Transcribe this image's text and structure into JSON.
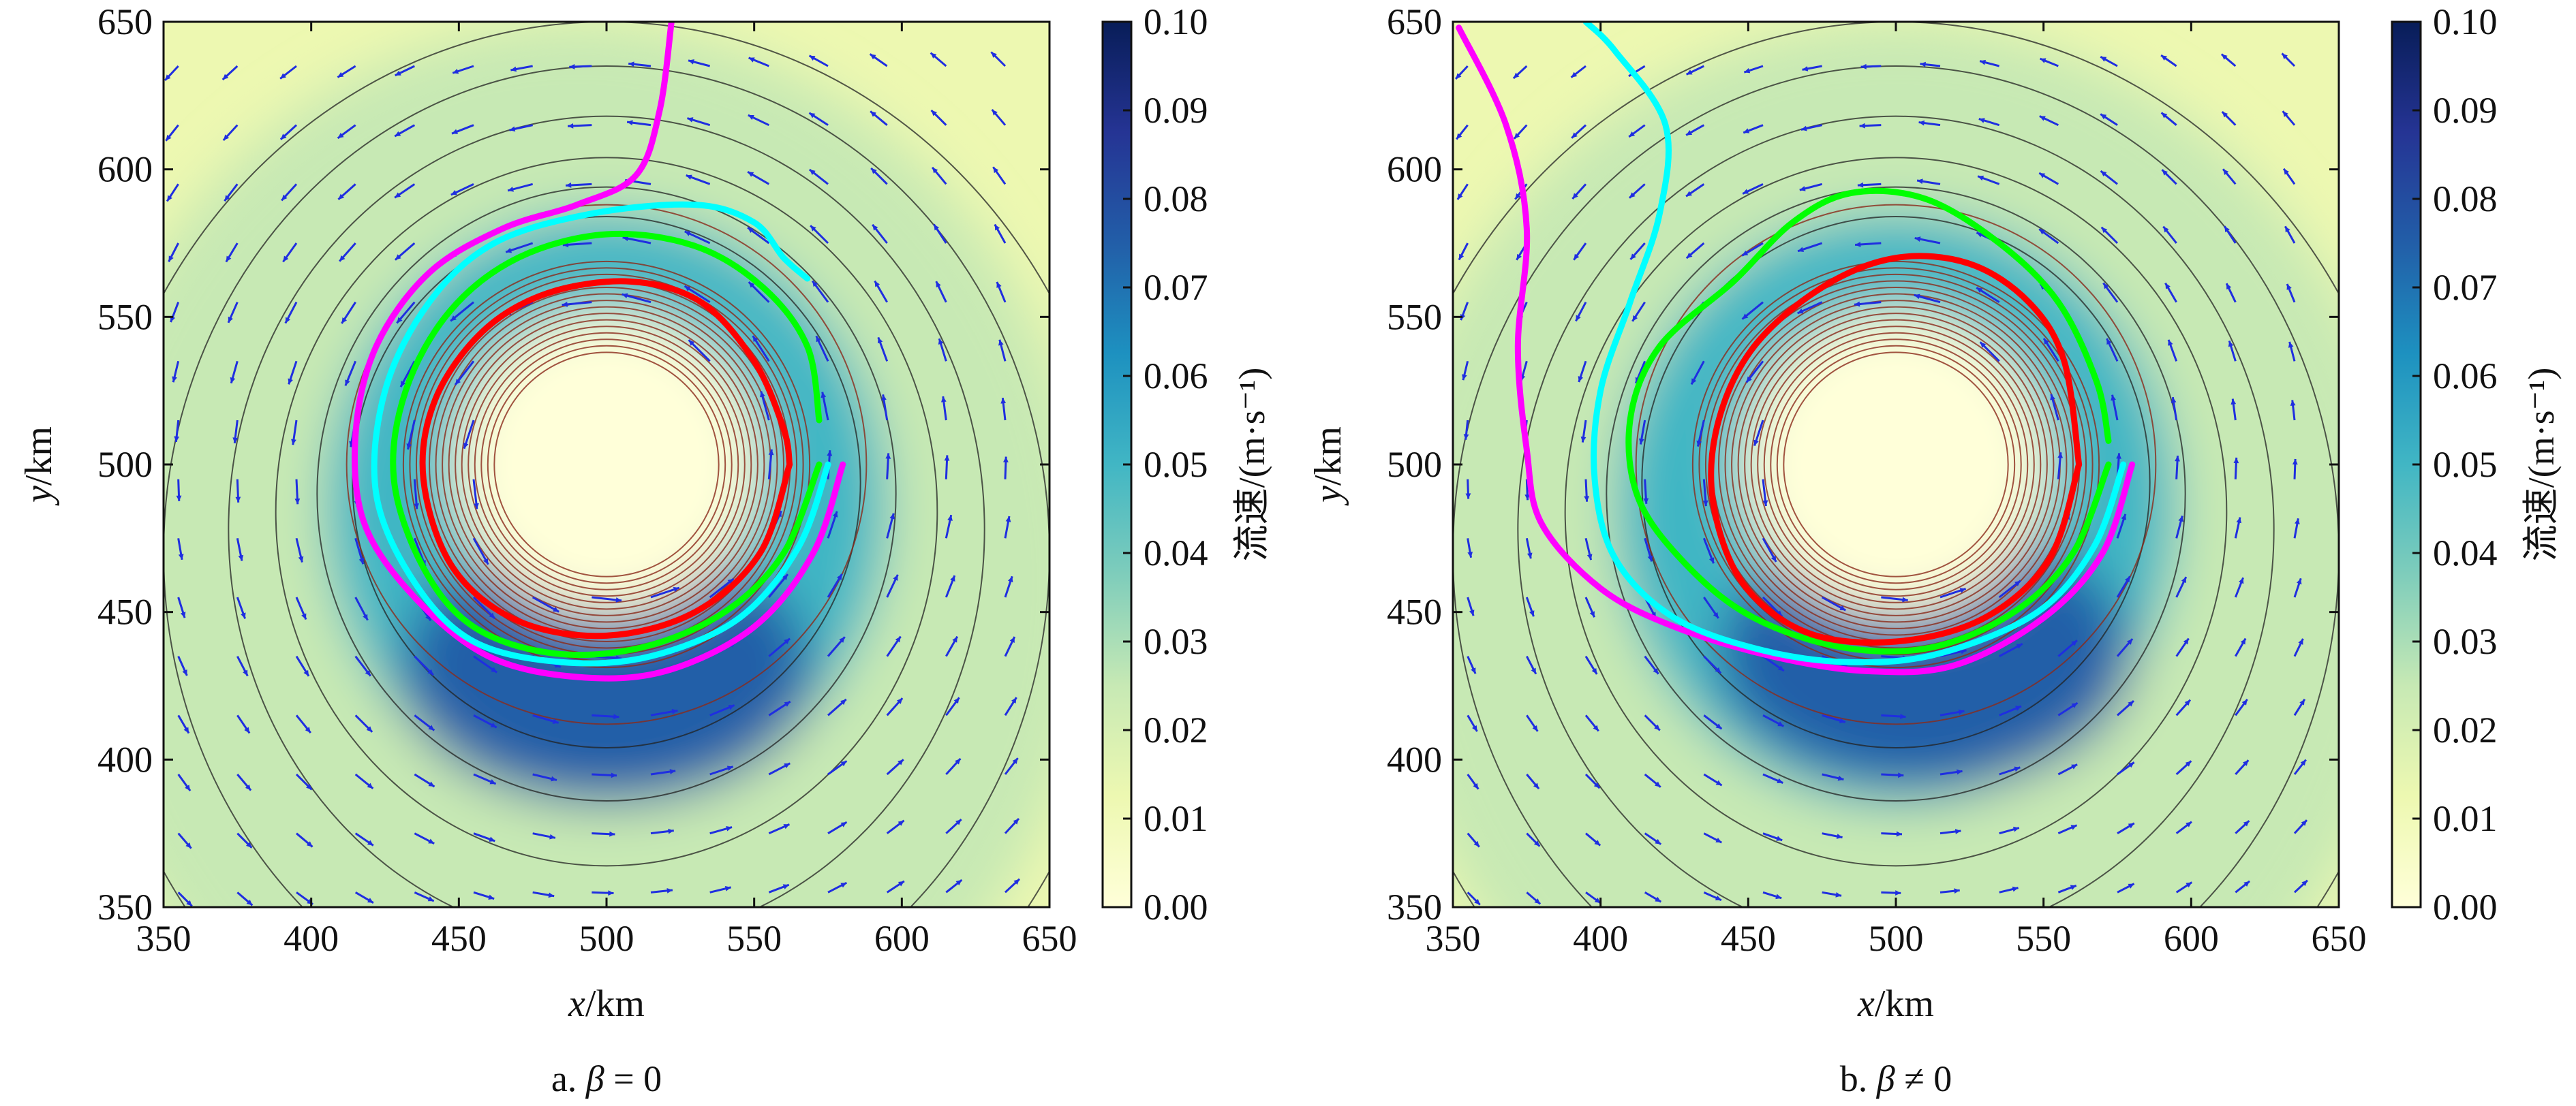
{
  "colorbar_colors": [
    "#ffffd9",
    "#edf8b1",
    "#c7e9b4",
    "#7fcdbb",
    "#41b6c4",
    "#1d91c0",
    "#225ea8",
    "#253494",
    "#081d58"
  ],
  "chart_data": [
    {
      "type": "contour",
      "caption_prefix": "a. ",
      "caption_symbol": "β",
      "caption_suffix": " = 0",
      "xlabel_var": "x",
      "xlabel_unit": "/km",
      "ylabel_var": "y",
      "ylabel_unit": "/km",
      "xlim": [
        350,
        650
      ],
      "ylim": [
        350,
        650
      ],
      "x_ticks": [
        "350",
        "400",
        "450",
        "500",
        "550",
        "600",
        "650"
      ],
      "y_ticks": [
        "350",
        "400",
        "450",
        "500",
        "550",
        "600",
        "650"
      ],
      "colorbar": {
        "label": "流速/(m·s⁻¹)",
        "range": [
          0.0,
          0.1
        ],
        "ticks": [
          "0.00",
          "0.01",
          "0.02",
          "0.03",
          "0.04",
          "0.05",
          "0.06",
          "0.07",
          "0.08",
          "0.09",
          "0.10"
        ]
      },
      "flow_field": {
        "vortex_center": [
          500,
          500
        ],
        "max_speed_value": 0.08,
        "max_speed_location": [
          500,
          425
        ],
        "background_value": 0.01
      },
      "tracks": [
        {
          "color": "#ff00ff",
          "points": [
            [
              580,
              500
            ],
            [
              570,
              470
            ],
            [
              550,
              445
            ],
            [
              520,
              430
            ],
            [
              490,
              428
            ],
            [
              460,
              435
            ],
            [
              435,
              455
            ],
            [
              418,
              480
            ],
            [
              415,
              510
            ],
            [
              422,
              540
            ],
            [
              440,
              565
            ],
            [
              465,
              580
            ],
            [
              490,
              588
            ],
            [
              510,
              598
            ],
            [
              518,
              620
            ],
            [
              522,
              650
            ]
          ]
        },
        {
          "color": "#00ffff",
          "points": [
            [
              575,
              500
            ],
            [
              565,
              472
            ],
            [
              545,
              448
            ],
            [
              515,
              435
            ],
            [
              485,
              433
            ],
            [
              455,
              440
            ],
            [
              435,
              460
            ],
            [
              422,
              490
            ],
            [
              425,
              525
            ],
            [
              440,
              555
            ],
            [
              462,
              575
            ],
            [
              495,
              585
            ],
            [
              530,
              588
            ],
            [
              550,
              582
            ],
            [
              560,
              570
            ],
            [
              568,
              563
            ]
          ]
        },
        {
          "color": "#00ff00",
          "points": [
            [
              572,
              500
            ],
            [
              560,
              470
            ],
            [
              540,
              450
            ],
            [
              512,
              438
            ],
            [
              482,
              436
            ],
            [
              455,
              445
            ],
            [
              438,
              465
            ],
            [
              428,
              495
            ],
            [
              432,
              525
            ],
            [
              447,
              552
            ],
            [
              470,
              570
            ],
            [
              500,
              578
            ],
            [
              530,
              574
            ],
            [
              553,
              560
            ],
            [
              568,
              540
            ],
            [
              572,
              515
            ]
          ]
        },
        {
          "color": "#ff0000",
          "points": [
            [
              562,
              500
            ],
            [
              552,
              470
            ],
            [
              530,
              450
            ],
            [
              500,
              442
            ],
            [
              470,
              447
            ],
            [
              448,
              465
            ],
            [
              438,
              495
            ],
            [
              442,
              522
            ],
            [
              458,
              545
            ],
            [
              480,
              558
            ],
            [
              508,
              562
            ],
            [
              532,
              555
            ],
            [
              550,
              535
            ],
            [
              560,
              512
            ],
            [
              562,
              500
            ]
          ]
        }
      ]
    },
    {
      "type": "contour",
      "caption_prefix": "b. ",
      "caption_symbol": "β",
      "caption_suffix": " ≠ 0",
      "xlabel_var": "x",
      "xlabel_unit": "/km",
      "ylabel_var": "y",
      "ylabel_unit": "/km",
      "xlim": [
        350,
        650
      ],
      "ylim": [
        350,
        650
      ],
      "x_ticks": [
        "350",
        "400",
        "450",
        "500",
        "550",
        "600",
        "650"
      ],
      "y_ticks": [
        "350",
        "400",
        "450",
        "500",
        "550",
        "600",
        "650"
      ],
      "colorbar": {
        "label": "流速/(m·s⁻¹)",
        "range": [
          0.0,
          0.1
        ],
        "ticks": [
          "0.00",
          "0.01",
          "0.02",
          "0.03",
          "0.04",
          "0.05",
          "0.06",
          "0.07",
          "0.08",
          "0.09",
          "0.10"
        ]
      },
      "flow_field": {
        "vortex_center": [
          500,
          500
        ],
        "max_speed_value": 0.08,
        "max_speed_location": [
          510,
          430
        ],
        "background_value": 0.01
      },
      "tracks": [
        {
          "color": "#ff00ff",
          "points": [
            [
              580,
              500
            ],
            [
              570,
              470
            ],
            [
              550,
              448
            ],
            [
              520,
              432
            ],
            [
              490,
              430
            ],
            [
              458,
              435
            ],
            [
              425,
              445
            ],
            [
              400,
              458
            ],
            [
              380,
              480
            ],
            [
              375,
              505
            ],
            [
              372,
              540
            ],
            [
              375,
              580
            ],
            [
              368,
              615
            ],
            [
              352,
              648
            ]
          ]
        },
        {
          "color": "#00ffff",
          "points": [
            [
              577,
              500
            ],
            [
              567,
              472
            ],
            [
              548,
              450
            ],
            [
              515,
              436
            ],
            [
              485,
              433
            ],
            [
              455,
              437
            ],
            [
              425,
              448
            ],
            [
              405,
              468
            ],
            [
              398,
              495
            ],
            [
              400,
              525
            ],
            [
              410,
              555
            ],
            [
              420,
              585
            ],
            [
              422,
              615
            ],
            [
              405,
              640
            ],
            [
              395,
              650
            ]
          ]
        },
        {
          "color": "#00ff00",
          "points": [
            [
              572,
              500
            ],
            [
              560,
              470
            ],
            [
              540,
              450
            ],
            [
              512,
              438
            ],
            [
              482,
              438
            ],
            [
              452,
              448
            ],
            [
              430,
              465
            ],
            [
              413,
              488
            ],
            [
              410,
              515
            ],
            [
              420,
              540
            ],
            [
              445,
              562
            ],
            [
              465,
              582
            ],
            [
              485,
              592
            ],
            [
              510,
              590
            ],
            [
              535,
              575
            ],
            [
              555,
              555
            ],
            [
              568,
              528
            ],
            [
              572,
              508
            ]
          ]
        },
        {
          "color": "#ff0000",
          "points": [
            [
              562,
              500
            ],
            [
              552,
              468
            ],
            [
              530,
              448
            ],
            [
              500,
              440
            ],
            [
              470,
              443
            ],
            [
              448,
              460
            ],
            [
              438,
              488
            ],
            [
              440,
              515
            ],
            [
              452,
              540
            ],
            [
              475,
              560
            ],
            [
              500,
              570
            ],
            [
              525,
              568
            ],
            [
              545,
              555
            ],
            [
              557,
              535
            ],
            [
              562,
              500
            ]
          ]
        }
      ]
    }
  ]
}
